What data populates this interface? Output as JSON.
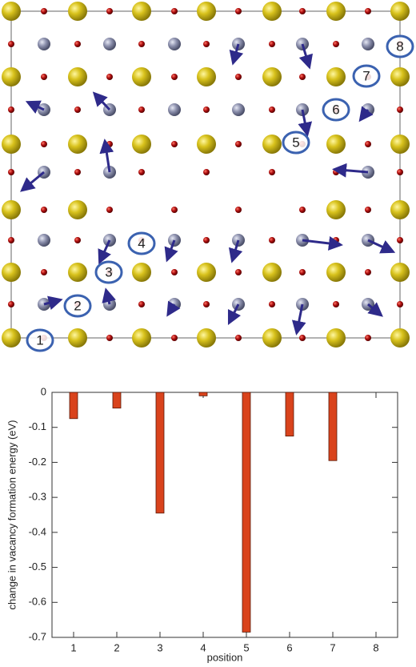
{
  "structure": {
    "labels": [
      "1",
      "2",
      "3",
      "4",
      "5",
      "6",
      "7",
      "8"
    ]
  },
  "chart_data": {
    "type": "bar",
    "x_label": "position",
    "y_label": "change in vacancy formation energy (eV)",
    "categories": [
      "1",
      "2",
      "3",
      "4",
      "5",
      "6",
      "7",
      "8"
    ],
    "values": [
      -0.075,
      -0.045,
      -0.345,
      -0.01,
      -0.685,
      -0.125,
      -0.195,
      0
    ],
    "color": "#d9431c",
    "xlim": [
      0.5,
      8.5
    ],
    "ylim": [
      -0.7,
      0
    ],
    "yticks": [
      0,
      -0.1,
      -0.2,
      -0.3,
      -0.4,
      -0.5,
      -0.6,
      -0.7
    ],
    "grid": false
  }
}
